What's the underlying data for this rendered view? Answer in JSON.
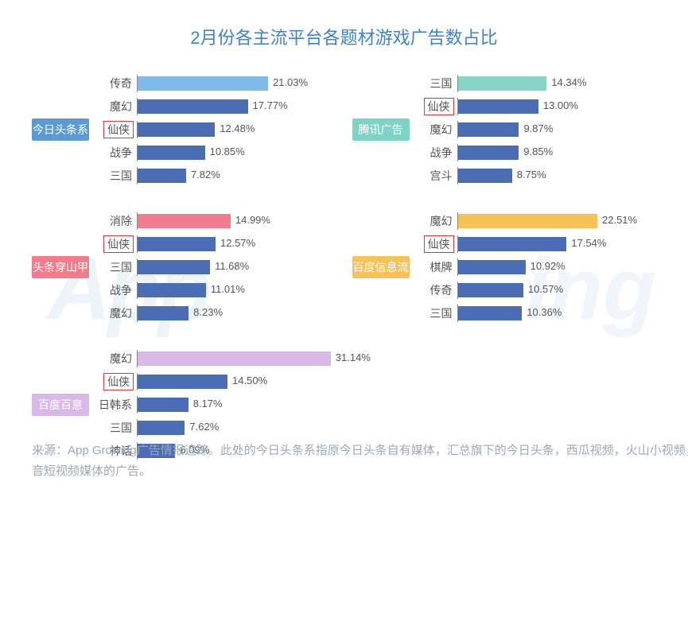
{
  "title": "2月份各主流平台各题材游戏广告数占比",
  "footer": "来源：App Growing广告情报追踪。此处的今日头条系指原今日头条自有媒体，汇总旗下的今日头条，西瓜视频，火山小视频，抖音短视频媒体的广告。",
  "watermark_left": "App",
  "watermark_right": "ing",
  "bar_default_color": "#4a6db5",
  "value_suffix": "%",
  "label_fontsize": 14,
  "value_fontsize": 13,
  "title_color": "#3b82d6",
  "highlight_box_color": "#d33c3c",
  "scale_max_pct": 32,
  "panels": [
    {
      "badge": "今日头条系",
      "badge_color": "#5b9bd5",
      "rows": [
        {
          "label": "传奇",
          "value": 21.03,
          "color": "#7fb9e8",
          "boxed": false
        },
        {
          "label": "魔幻",
          "value": 17.77,
          "color": "#4a6db5",
          "boxed": false
        },
        {
          "label": "仙侠",
          "value": 12.48,
          "color": "#4a6db5",
          "boxed": true
        },
        {
          "label": "战争",
          "value": 10.85,
          "color": "#4a6db5",
          "boxed": false
        },
        {
          "label": "三国",
          "value": 7.82,
          "color": "#4a6db5",
          "boxed": false
        }
      ]
    },
    {
      "badge": "腾讯广告",
      "badge_color": "#7ed4c4",
      "rows": [
        {
          "label": "三国",
          "value": 14.34,
          "color": "#86d4c3",
          "boxed": false
        },
        {
          "label": "仙侠",
          "value": 13.0,
          "color": "#4a6db5",
          "boxed": true
        },
        {
          "label": "魔幻",
          "value": 9.87,
          "color": "#4a6db5",
          "boxed": false
        },
        {
          "label": "战争",
          "value": 9.85,
          "color": "#4a6db5",
          "boxed": false
        },
        {
          "label": "宫斗",
          "value": 8.75,
          "color": "#4a6db5",
          "boxed": false
        }
      ]
    },
    {
      "badge": "头条穿山甲",
      "badge_color": "#f07c8c",
      "rows": [
        {
          "label": "消除",
          "value": 14.99,
          "color": "#f07c8c",
          "boxed": false
        },
        {
          "label": "仙侠",
          "value": 12.57,
          "color": "#4a6db5",
          "boxed": true
        },
        {
          "label": "三国",
          "value": 11.68,
          "color": "#4a6db5",
          "boxed": false
        },
        {
          "label": "战争",
          "value": 11.01,
          "color": "#4a6db5",
          "boxed": false
        },
        {
          "label": "魔幻",
          "value": 8.23,
          "color": "#4a6db5",
          "boxed": false
        }
      ]
    },
    {
      "badge": "百度信息流",
      "badge_color": "#f7c15a",
      "rows": [
        {
          "label": "魔幻",
          "value": 22.51,
          "color": "#f7c15a",
          "boxed": false
        },
        {
          "label": "仙侠",
          "value": 17.54,
          "color": "#4a6db5",
          "boxed": true
        },
        {
          "label": "棋牌",
          "value": 10.92,
          "color": "#4a6db5",
          "boxed": false
        },
        {
          "label": "传奇",
          "value": 10.57,
          "color": "#4a6db5",
          "boxed": false
        },
        {
          "label": "三国",
          "value": 10.36,
          "color": "#4a6db5",
          "boxed": false
        }
      ]
    },
    {
      "badge": "百度百意",
      "badge_color": "#d8b8e6",
      "rows": [
        {
          "label": "魔幻",
          "value": 31.14,
          "color": "#d8b8e6",
          "boxed": false
        },
        {
          "label": "仙侠",
          "value": 14.5,
          "color": "#4a6db5",
          "boxed": true
        },
        {
          "label": "日韩系",
          "value": 8.17,
          "color": "#4a6db5",
          "boxed": false
        },
        {
          "label": "三国",
          "value": 7.62,
          "color": "#4a6db5",
          "boxed": false
        },
        {
          "label": "神话",
          "value": 6.09,
          "color": "#4a6db5",
          "boxed": false
        }
      ]
    }
  ]
}
